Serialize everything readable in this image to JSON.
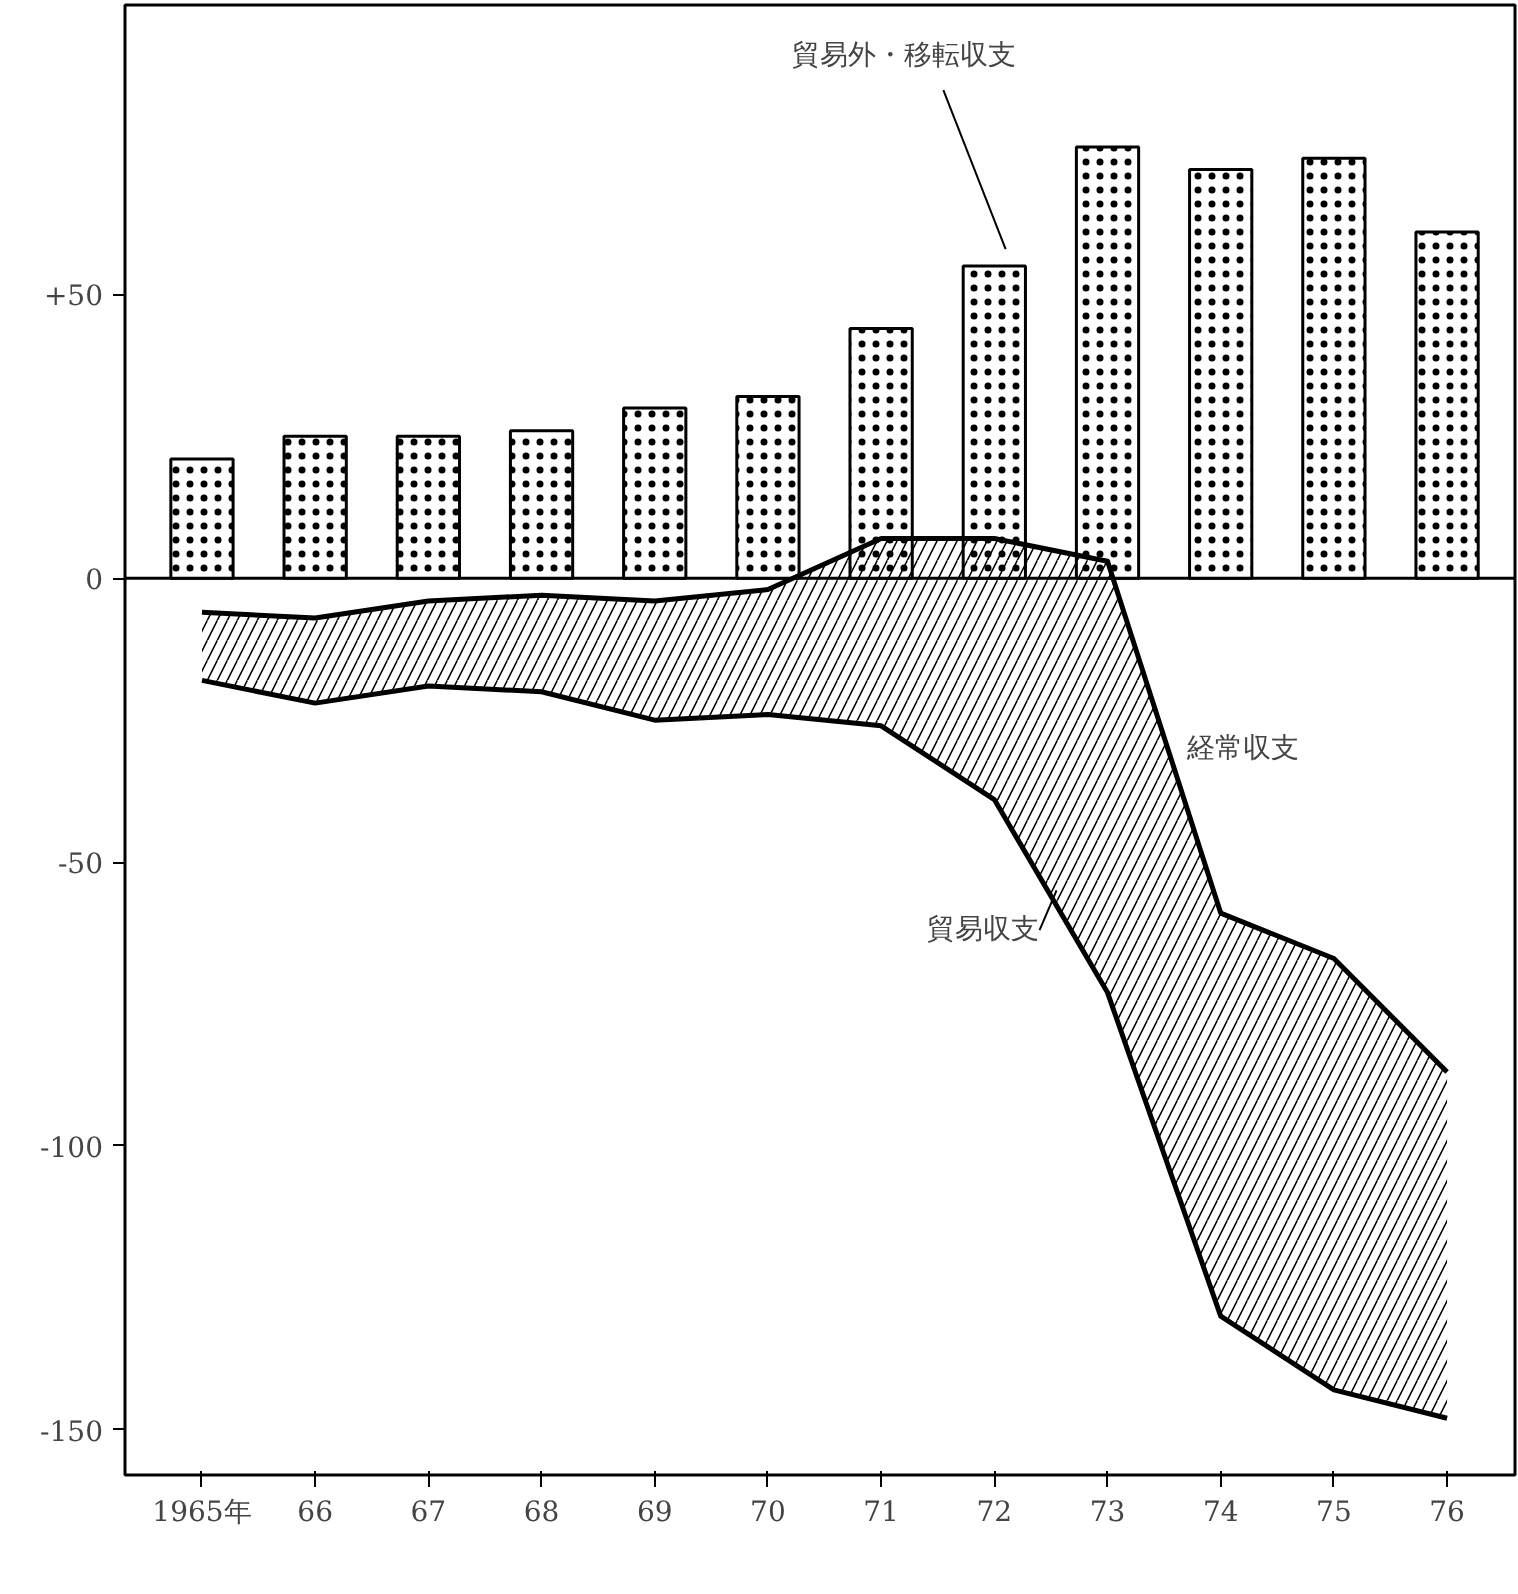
{
  "chart_data": {
    "type": "bar",
    "categories": [
      "1965年",
      "66",
      "67",
      "68",
      "69",
      "70",
      "71",
      "72",
      "73",
      "74",
      "75",
      "76"
    ],
    "ylim": [
      -158,
      101
    ],
    "yticks": [
      {
        "value": 50,
        "label": "+50"
      },
      0,
      -50,
      -100,
      -150
    ],
    "grid": false,
    "legend": false,
    "ref_lines": [
      {
        "axis": "y",
        "value": 0
      }
    ],
    "series": [
      {
        "name": "貿易外・移転収支",
        "color": "#000000",
        "values": [
          21,
          25,
          25,
          26,
          30,
          32,
          44,
          55,
          76,
          72,
          74,
          61
        ]
      },
      {
        "name": "経常収支",
        "type": "line",
        "color": "#000000",
        "values": [
          -6,
          -7,
          -4,
          -3,
          -4,
          -2,
          7,
          7,
          3,
          -59,
          -67,
          -87
        ]
      },
      {
        "name": "貿易収支",
        "type": "line",
        "color": "#000000",
        "values": [
          -18,
          -22,
          -19,
          -20,
          -25,
          -24,
          -26,
          -39,
          -73,
          -130,
          -143,
          -148
        ],
        "lower": [
          -18,
          -22,
          -19,
          -20,
          -25,
          -24,
          -26,
          -39,
          -73,
          -130,
          -143,
          -148
        ],
        "upper": [
          -6,
          -7,
          -4,
          -3,
          -4,
          -2,
          7,
          7,
          3,
          -59,
          -67,
          -87
        ]
      }
    ]
  }
}
